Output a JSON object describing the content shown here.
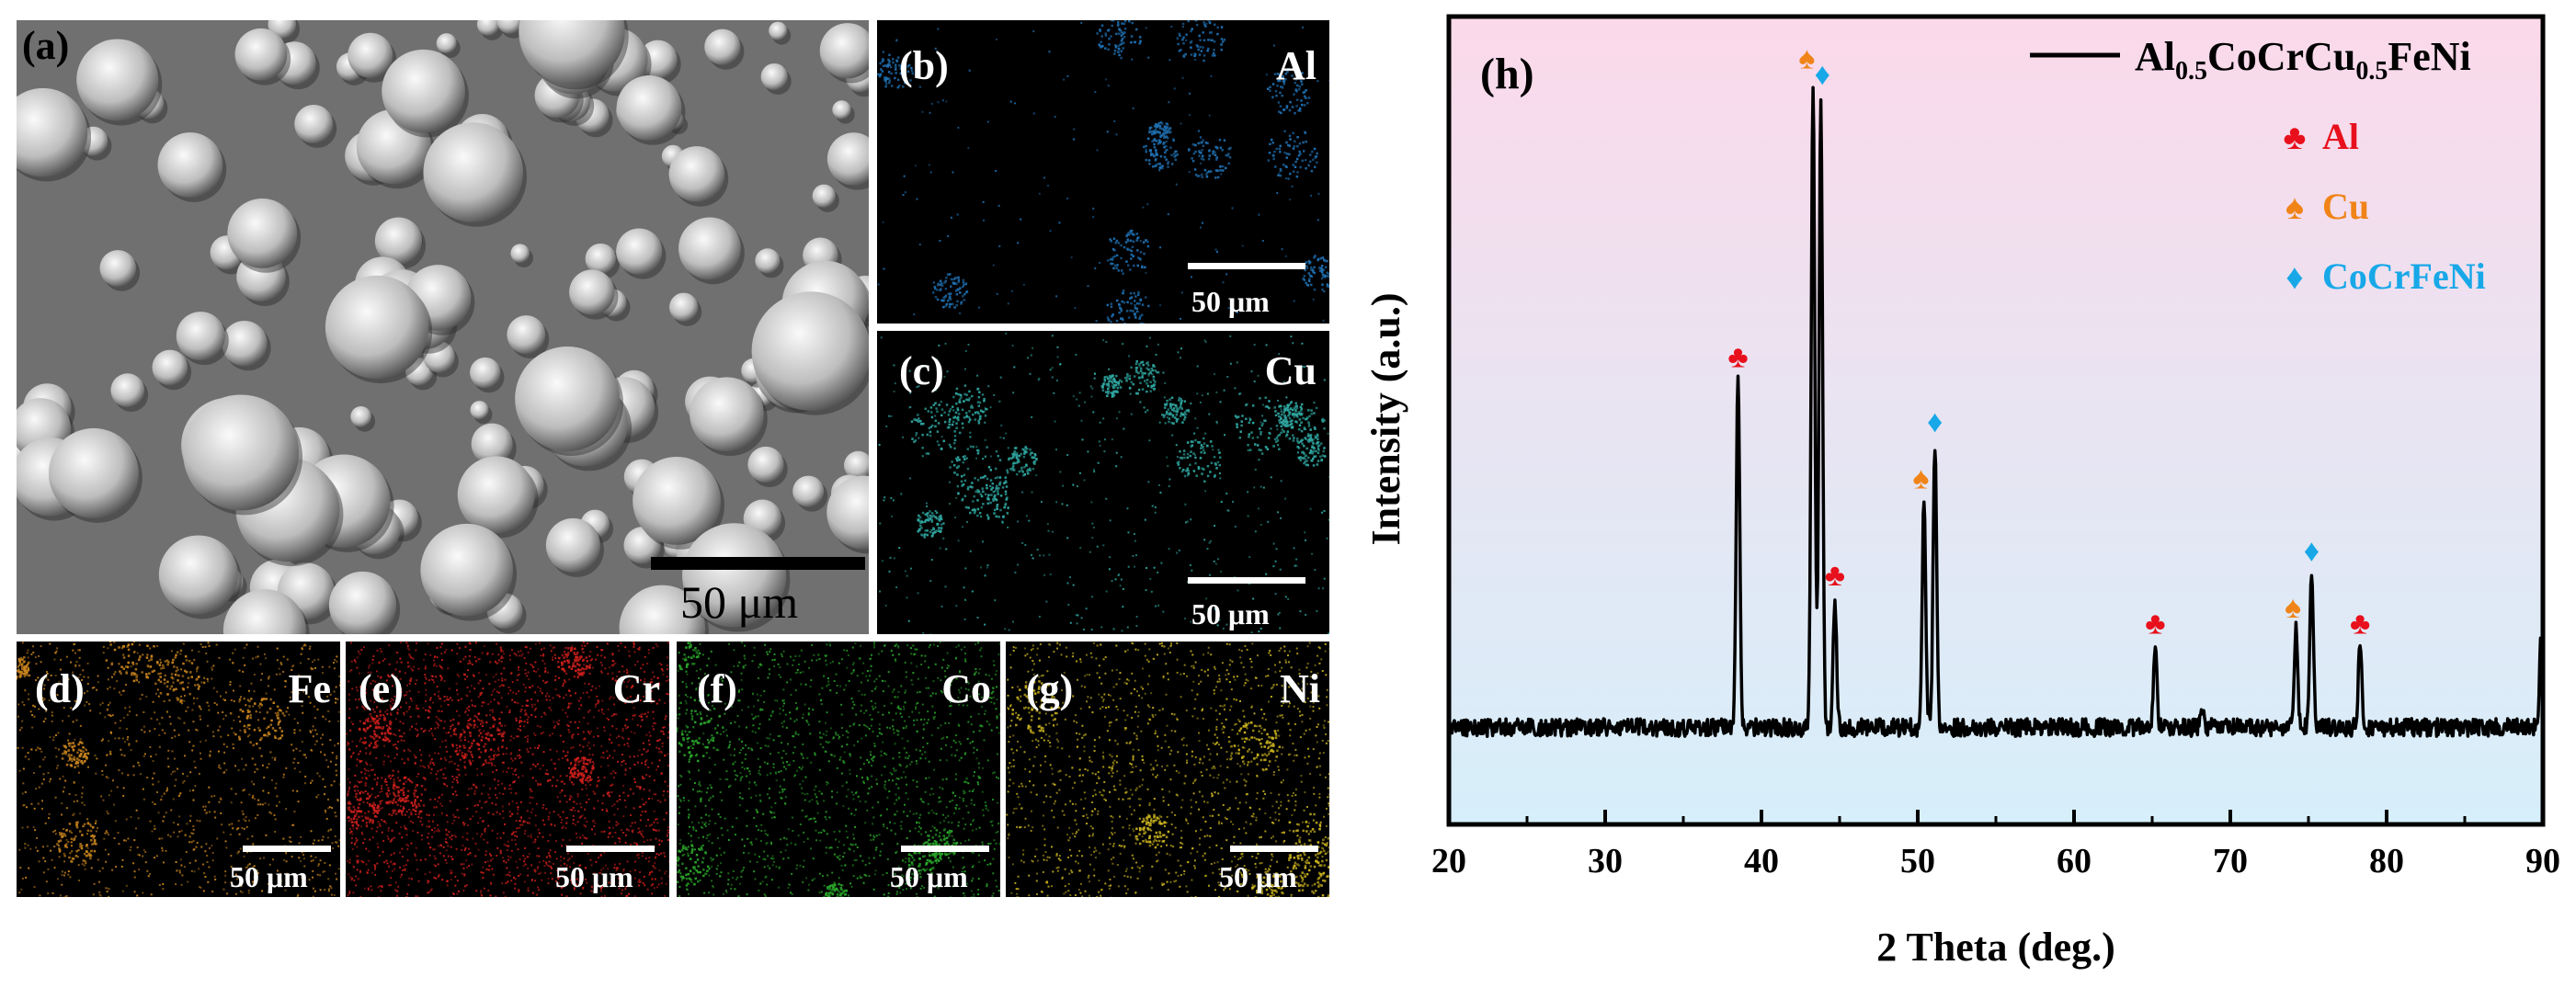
{
  "figure": {
    "panels": {
      "a": {
        "label": "(a)",
        "scale_bar": "50 μm"
      },
      "b": {
        "label": "(b)",
        "element": "Al",
        "scale_bar": "50 μm",
        "color": "#1f6fb0"
      },
      "c": {
        "label": "(c)",
        "element": "Cu",
        "scale_bar": "50 μm",
        "color": "#2fa6a0"
      },
      "d": {
        "label": "(d)",
        "element": "Fe",
        "scale_bar": "50 μm",
        "color": "#c8841e"
      },
      "e": {
        "label": "(e)",
        "element": "Cr",
        "scale_bar": "50 μm",
        "color": "#d0201c"
      },
      "f": {
        "label": "(f)",
        "element": "Co",
        "scale_bar": "50 μm",
        "color": "#2aa52a"
      },
      "g": {
        "label": "(g)",
        "element": "Ni",
        "scale_bar": "50 μm",
        "color": "#c9b21f"
      }
    }
  },
  "chart_data": {
    "type": "line",
    "panel_label": "(h)",
    "xlabel": "2 Theta (deg.)",
    "ylabel": "Intensity (a.u.)",
    "xlim": [
      20,
      90
    ],
    "x_ticks": [
      "20",
      "30",
      "40",
      "50",
      "60",
      "70",
      "80",
      "90"
    ],
    "ylim": [
      0,
      100
    ],
    "series": [
      {
        "name_parts": [
          "Al",
          "0.5",
          "CoCrCu",
          "0.5",
          "FeNi"
        ],
        "baseline": 12,
        "peaks": [
          {
            "x": 38.5,
            "y": 55
          },
          {
            "x": 43.3,
            "y": 92
          },
          {
            "x": 43.8,
            "y": 90
          },
          {
            "x": 44.7,
            "y": 28
          },
          {
            "x": 50.4,
            "y": 40
          },
          {
            "x": 51.1,
            "y": 47
          },
          {
            "x": 65.2,
            "y": 22
          },
          {
            "x": 68.2,
            "y": 14
          },
          {
            "x": 74.2,
            "y": 24
          },
          {
            "x": 75.2,
            "y": 31
          },
          {
            "x": 78.3,
            "y": 22
          },
          {
            "x": 89.9,
            "y": 23
          }
        ]
      }
    ],
    "phase_legend": [
      {
        "symbol": "♣",
        "label": "Al",
        "color": "#e8101c"
      },
      {
        "symbol": "♠",
        "label": "Cu",
        "color": "#f08418"
      },
      {
        "symbol": "♦",
        "label": "CoCrFeNi",
        "color": "#18a8e8"
      }
    ],
    "markers": [
      {
        "x": 38.5,
        "phase": 0,
        "y": 55
      },
      {
        "x": 42.9,
        "phase": 1,
        "y": 92
      },
      {
        "x": 43.9,
        "phase": 2,
        "y": 90
      },
      {
        "x": 44.7,
        "phase": 0,
        "y": 28
      },
      {
        "x": 50.2,
        "phase": 1,
        "y": 40
      },
      {
        "x": 51.1,
        "phase": 2,
        "y": 47
      },
      {
        "x": 65.2,
        "phase": 0,
        "y": 22
      },
      {
        "x": 74.0,
        "phase": 1,
        "y": 24
      },
      {
        "x": 75.2,
        "phase": 2,
        "y": 31
      },
      {
        "x": 78.3,
        "phase": 0,
        "y": 22
      }
    ],
    "background_gradient": {
      "top": "#fbd9ea",
      "bottom": "#d6effa"
    }
  }
}
